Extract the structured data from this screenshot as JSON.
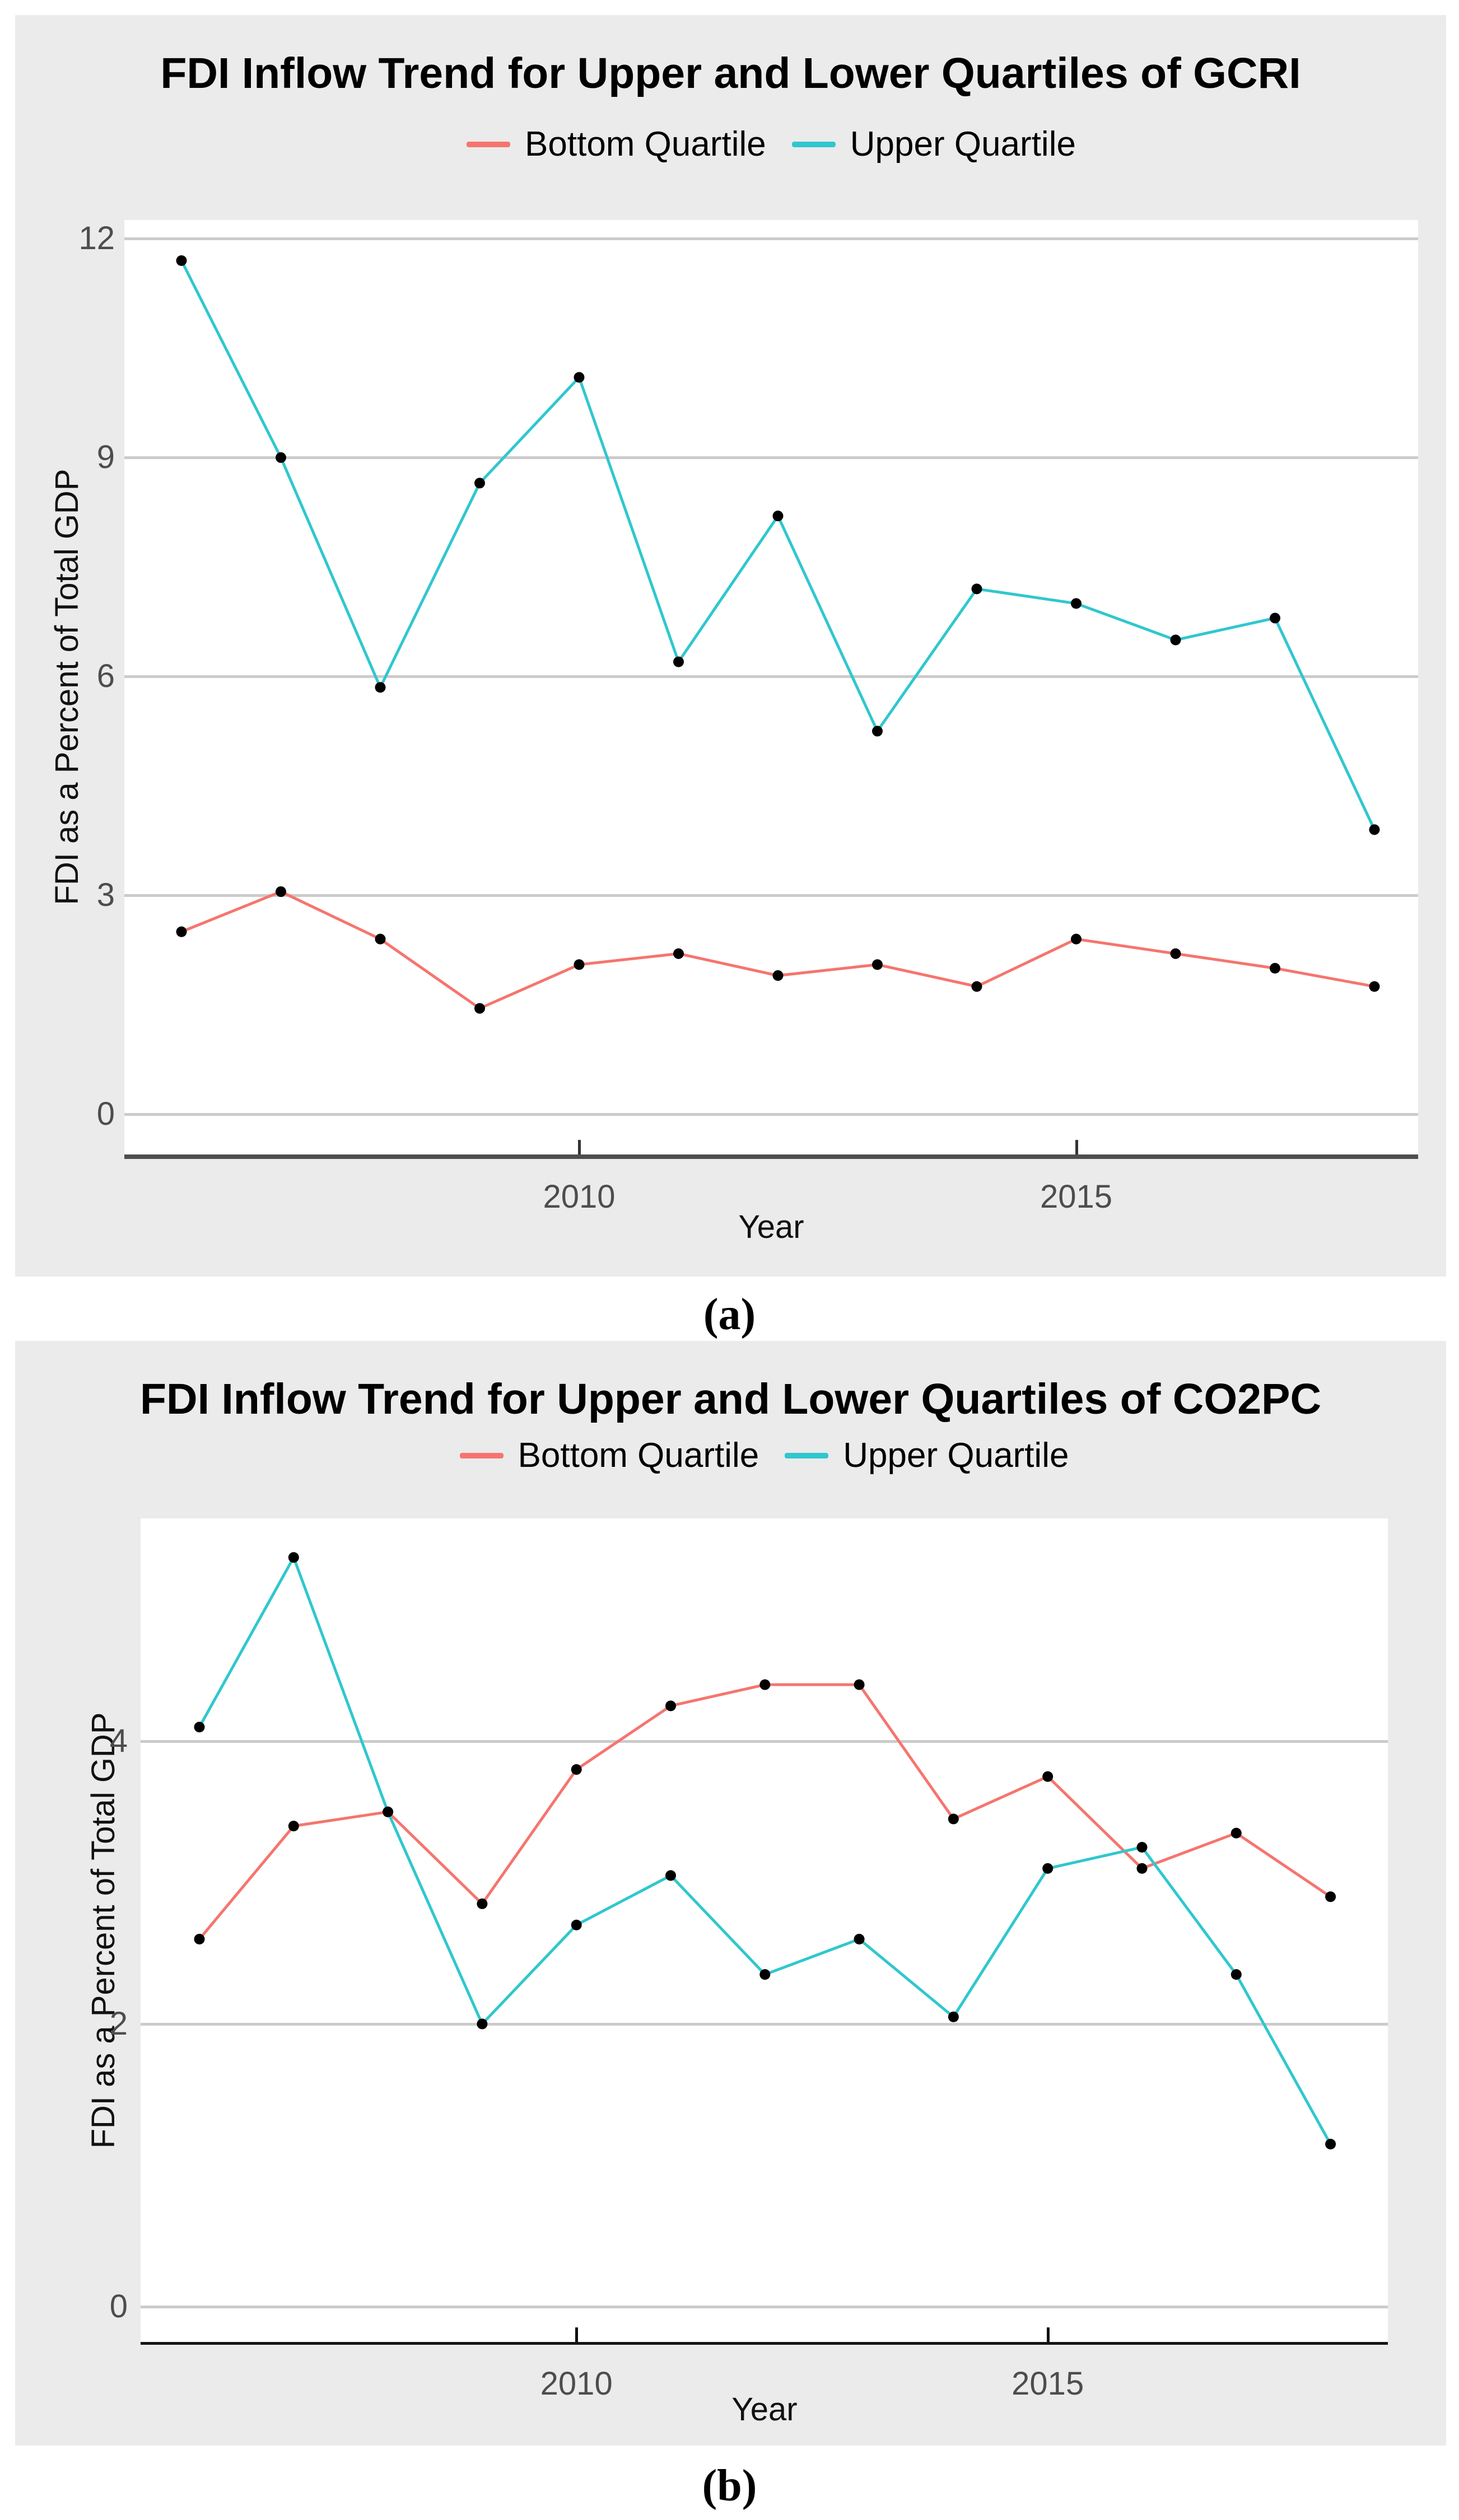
{
  "colors": {
    "bottom_quartile": "#F5756E",
    "upper_quartile": "#30C7CE",
    "point": "#000000",
    "grid": "#CBCBCB",
    "panel_background": "#EBEBEB",
    "plot_background": "#FFFFFF",
    "axis_line_a": "#4E4E4E",
    "axis_line_b": "#141414",
    "tick_text": "#4D4D4D",
    "title_text": "#000000"
  },
  "chart_data": [
    {
      "type": "line",
      "title": "FDI Inflow Trend for Upper and Lower Quartiles of GCRI",
      "xlabel": "Year",
      "ylabel": "FDI as a Percent of Total GDP",
      "caption": "(a)",
      "legend_position": "top",
      "grid": "horizontal",
      "x": [
        2006,
        2007,
        2008,
        2009,
        2010,
        2011,
        2012,
        2013,
        2014,
        2015,
        2016,
        2017,
        2018
      ],
      "series": [
        {
          "name": "Bottom Quartile",
          "color_key": "bottom_quartile",
          "values": [
            2.5,
            3.05,
            2.4,
            1.45,
            2.05,
            2.2,
            1.9,
            2.05,
            1.75,
            2.4,
            2.2,
            2.0,
            1.75
          ]
        },
        {
          "name": "Upper Quartile",
          "color_key": "upper_quartile",
          "values": [
            11.7,
            9.0,
            5.85,
            8.65,
            10.1,
            6.2,
            8.2,
            5.25,
            7.2,
            7.0,
            6.5,
            6.8,
            3.9
          ]
        }
      ],
      "x_ticks": [
        2010,
        2015
      ],
      "y_ticks": [
        12,
        9,
        6,
        3,
        0
      ],
      "ylim": [
        -0.55,
        12.25
      ]
    },
    {
      "type": "line",
      "title": "FDI Inflow Trend for Upper and Lower Quartiles of CO2PC",
      "xlabel": "Year",
      "ylabel": "FDI as a Percent of Total GDP",
      "caption": "(b)",
      "legend_position": "top",
      "grid": "horizontal",
      "x": [
        2006,
        2007,
        2008,
        2009,
        2010,
        2011,
        2012,
        2013,
        2014,
        2015,
        2016,
        2017,
        2018
      ],
      "series": [
        {
          "name": "Bottom Quartile",
          "color_key": "bottom_quartile",
          "values": [
            2.6,
            3.4,
            3.5,
            2.85,
            3.8,
            4.25,
            4.4,
            4.4,
            3.45,
            3.75,
            3.1,
            3.35,
            2.9
          ]
        },
        {
          "name": "Upper Quartile",
          "color_key": "upper_quartile",
          "values": [
            4.1,
            5.3,
            3.5,
            2.0,
            2.7,
            3.05,
            2.35,
            2.6,
            2.05,
            3.1,
            3.25,
            2.35,
            1.15
          ]
        }
      ],
      "x_ticks": [
        2010,
        2015
      ],
      "y_ticks": [
        4,
        2,
        0
      ],
      "ylim": [
        -0.25,
        5.55
      ]
    }
  ]
}
